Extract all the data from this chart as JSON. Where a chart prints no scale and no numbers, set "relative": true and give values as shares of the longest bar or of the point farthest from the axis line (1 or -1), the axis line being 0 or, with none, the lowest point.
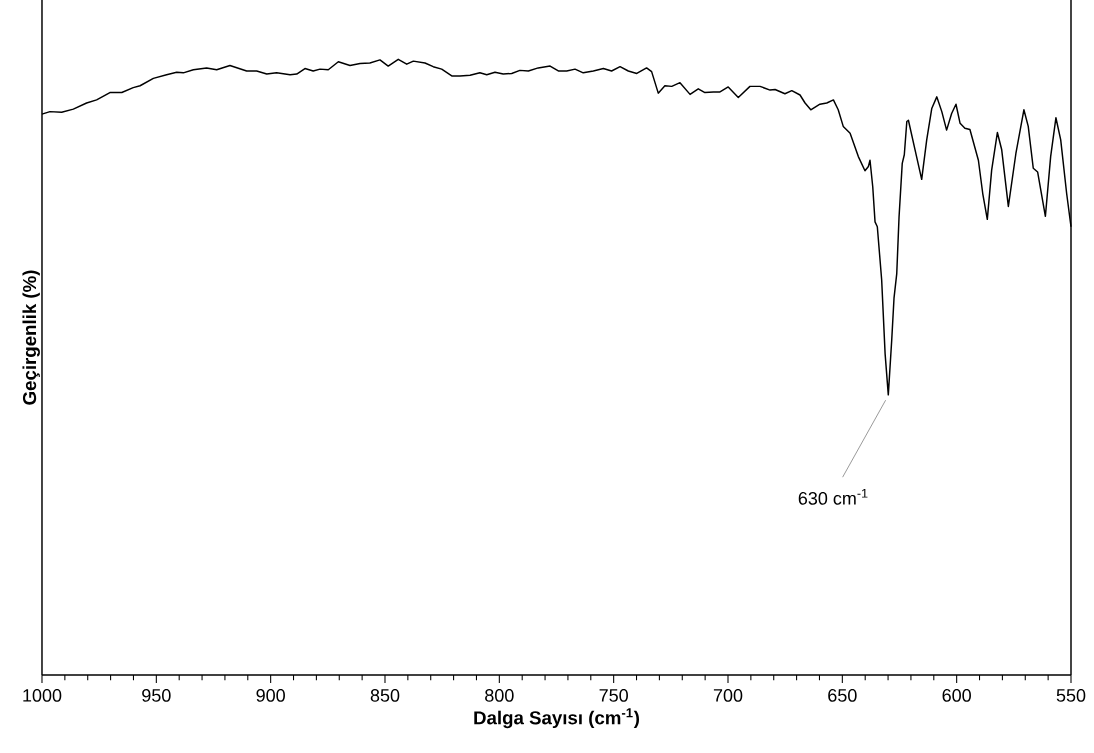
{
  "chart_data": {
    "type": "line",
    "relative": true,
    "xlabel": "Dalga Sayısı (cm$^{-1}$)",
    "ylabel": "Geçirgenlik (%)",
    "xlim": [
      1000,
      550
    ],
    "xticks": [
      1000,
      950,
      900,
      850,
      800,
      750,
      700,
      650,
      600,
      550
    ],
    "annotations": [
      {
        "text": "630 cm$^{-1}$",
        "x": 629.9,
        "y": 0.455
      }
    ],
    "series": [
      {
        "color": "#000000",
        "x": [
          1000,
          996.5,
          991.4,
          986.3,
          980.5,
          976.1,
          970.3,
          965.1,
          960.1,
          957.1,
          951.3,
          945.5,
          941.1,
          938.2,
          933.8,
          928.0,
          923.6,
          917.8,
          910.5,
          906.1,
          901.7,
          897.4,
          891.5,
          888.6,
          885.0,
          881.4,
          878.4,
          874.8,
          870.4,
          865.3,
          860.9,
          856.6,
          852.2,
          848.6,
          844.2,
          840.5,
          837.6,
          832.5,
          828.9,
          825.2,
          820.8,
          817.2,
          812.8,
          808.5,
          805.5,
          801.9,
          798.3,
          794.6,
          791.0,
          787.3,
          783.0,
          777.8,
          774.2,
          770.5,
          766.9,
          763.3,
          758.9,
          754.5,
          750.9,
          747.2,
          743.6,
          739.9,
          735.6,
          733.4,
          730.5,
          727.6,
          724.6,
          721.0,
          716.6,
          713.0,
          710.1,
          706.4,
          703.5,
          699.9,
          695.5,
          690.4,
          686.0,
          681.6,
          679.4,
          675.1,
          672.1,
          668.5,
          666.3,
          663.8,
          659.8,
          656.8,
          653.9,
          651.8,
          649.6,
          646.6,
          643.0,
          640.1,
          638.6,
          637.9,
          636.7,
          635.7,
          634.7,
          632.8,
          631.3,
          629.9,
          628.4,
          627.4,
          626.2,
          625.2,
          623.8,
          622.9,
          621.8,
          621.1,
          618.2,
          615.3,
          613.1,
          610.9,
          608.7,
          606.5,
          604.4,
          602.2,
          600.3,
          598.5,
          596.4,
          594.2,
          590.5,
          588.6,
          586.6,
          584.7,
          582.2,
          580.3,
          577.4,
          574.1,
          570.6,
          568.7,
          566.5,
          564.6,
          561.2,
          558.9,
          556.6,
          554.5,
          551.9,
          550
        ],
        "values": [
          0.911,
          0.915,
          0.914,
          0.919,
          0.929,
          0.934,
          0.946,
          0.946,
          0.954,
          0.957,
          0.969,
          0.975,
          0.979,
          0.978,
          0.983,
          0.986,
          0.983,
          0.99,
          0.981,
          0.981,
          0.976,
          0.978,
          0.975,
          0.976,
          0.985,
          0.981,
          0.984,
          0.983,
          0.996,
          0.99,
          0.993,
          0.994,
          0.999,
          0.989,
          1.0,
          0.992,
          0.997,
          0.994,
          0.988,
          0.984,
          0.973,
          0.973,
          0.974,
          0.978,
          0.975,
          0.979,
          0.976,
          0.977,
          0.982,
          0.981,
          0.986,
          0.989,
          0.981,
          0.981,
          0.984,
          0.978,
          0.981,
          0.985,
          0.981,
          0.988,
          0.981,
          0.977,
          0.986,
          0.98,
          0.945,
          0.957,
          0.956,
          0.962,
          0.943,
          0.952,
          0.946,
          0.947,
          0.947,
          0.955,
          0.938,
          0.956,
          0.956,
          0.95,
          0.951,
          0.944,
          0.949,
          0.942,
          0.929,
          0.918,
          0.927,
          0.929,
          0.934,
          0.918,
          0.891,
          0.88,
          0.842,
          0.819,
          0.826,
          0.836,
          0.793,
          0.736,
          0.728,
          0.642,
          0.522,
          0.455,
          0.544,
          0.612,
          0.652,
          0.744,
          0.831,
          0.845,
          0.899,
          0.901,
          0.853,
          0.805,
          0.869,
          0.92,
          0.939,
          0.915,
          0.885,
          0.912,
          0.927,
          0.896,
          0.888,
          0.886,
          0.836,
          0.782,
          0.74,
          0.82,
          0.881,
          0.853,
          0.761,
          0.847,
          0.918,
          0.891,
          0.823,
          0.817,
          0.745,
          0.842,
          0.905,
          0.869,
          0.782,
          0.728
        ]
      }
    ]
  }
}
